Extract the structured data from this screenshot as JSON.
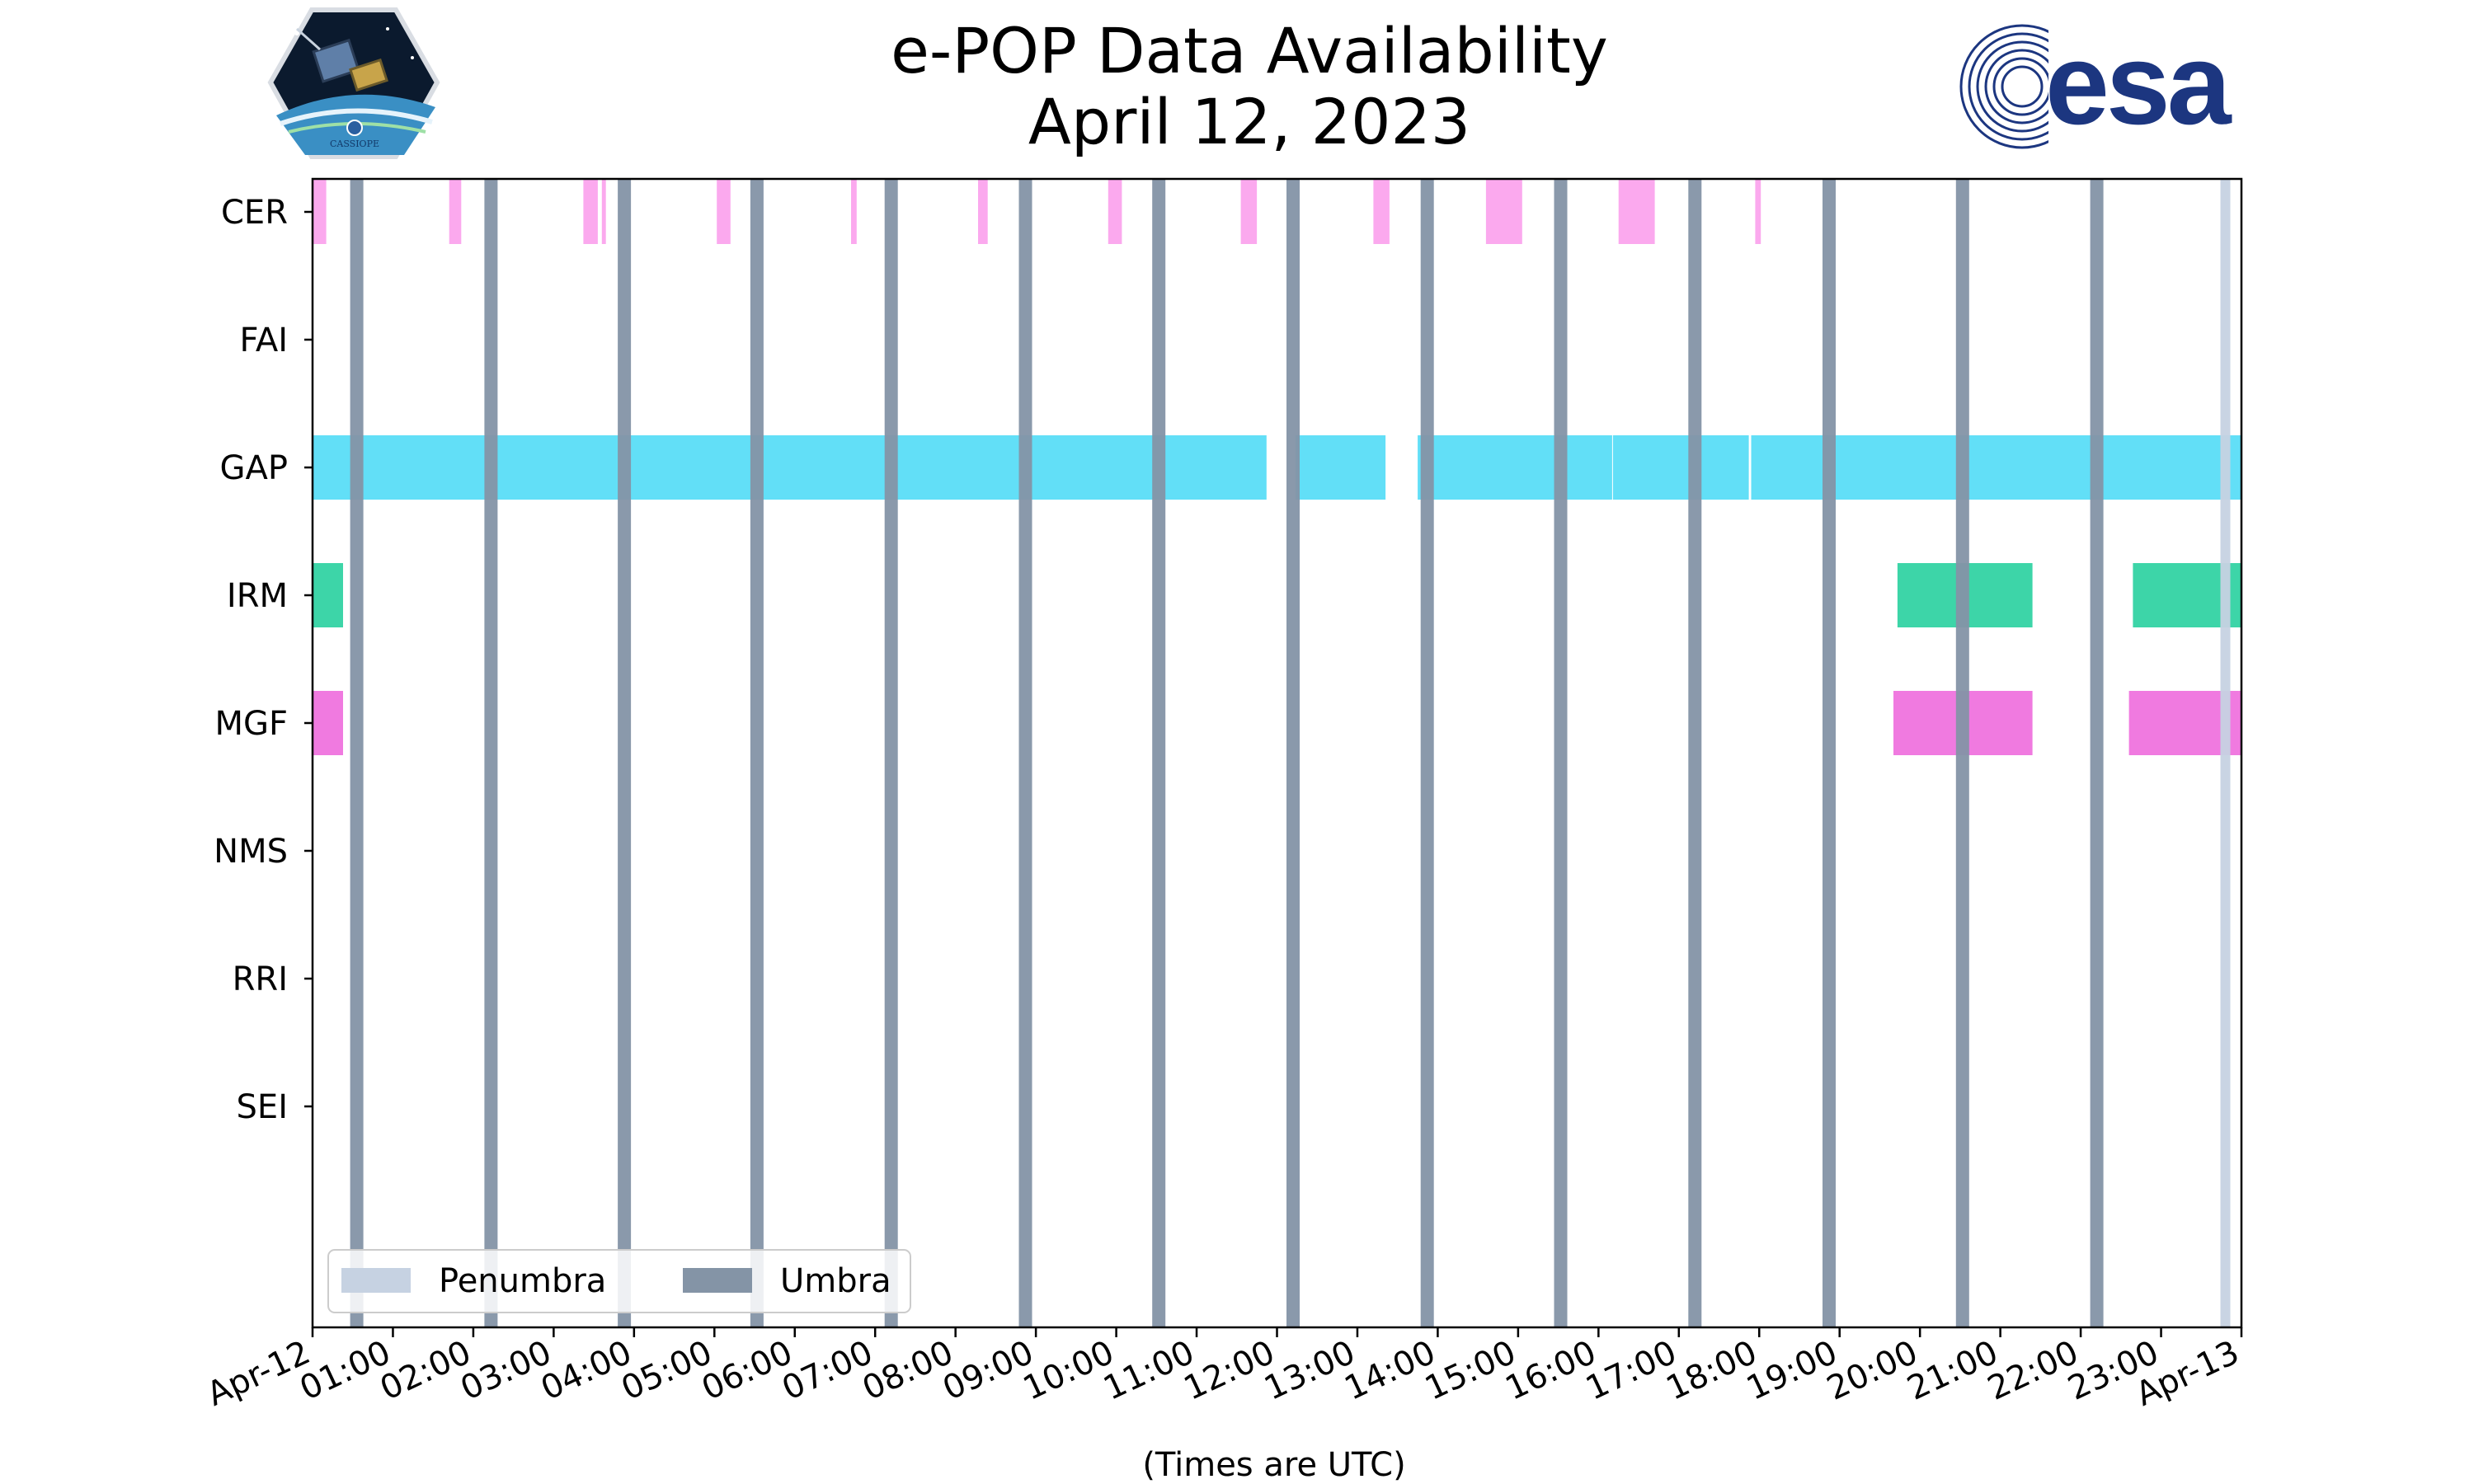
{
  "header": {
    "title_line1": "e-POP Data Availability",
    "title_line2": "April 12, 2023",
    "logo_left_text": "CASSIOPE",
    "logo_right_text": "esa"
  },
  "colors": {
    "CER": "#fba9ee",
    "GAP": "#62dff7",
    "IRM": "#3dd5a8",
    "MGF": "#f07ae0",
    "umbra": "#8494a6",
    "penumbra": "#c6d2e2",
    "esa_blue": "#1c3680"
  },
  "chart_data": {
    "type": "timeline",
    "title": "e-POP Data Availability",
    "subtitle": "April 12, 2023",
    "xlabel": "(Times are UTC)",
    "x_range_hours": [
      0,
      24
    ],
    "x_ticks": [
      "Apr-12",
      "01:00",
      "02:00",
      "03:00",
      "04:00",
      "05:00",
      "06:00",
      "07:00",
      "08:00",
      "09:00",
      "10:00",
      "11:00",
      "12:00",
      "13:00",
      "14:00",
      "15:00",
      "16:00",
      "17:00",
      "18:00",
      "19:00",
      "20:00",
      "21:00",
      "22:00",
      "23:00",
      "Apr-13"
    ],
    "instruments": [
      "CER",
      "FAI",
      "GAP",
      "IRM",
      "MGF",
      "NMS",
      "RRI",
      "SEI"
    ],
    "intervals": {
      "CER": [
        [
          0.0,
          0.17
        ],
        [
          1.7,
          1.85
        ],
        [
          3.37,
          3.55
        ],
        [
          3.6,
          3.65
        ],
        [
          5.03,
          5.2
        ],
        [
          6.7,
          6.77
        ],
        [
          8.28,
          8.4
        ],
        [
          9.9,
          10.07
        ],
        [
          11.55,
          11.75
        ],
        [
          13.2,
          13.4
        ],
        [
          14.6,
          15.05
        ],
        [
          16.25,
          16.7
        ],
        [
          17.95,
          18.02
        ]
      ],
      "FAI": [],
      "GAP": [
        [
          0.0,
          11.87
        ],
        [
          12.23,
          13.35
        ],
        [
          13.75,
          16.17
        ],
        [
          16.18,
          17.87
        ],
        [
          17.9,
          24.0
        ]
      ],
      "IRM": [
        [
          0.0,
          0.38
        ],
        [
          19.72,
          21.4
        ],
        [
          22.65,
          24.0
        ]
      ],
      "MGF": [
        [
          0.0,
          0.38
        ],
        [
          19.67,
          21.4
        ],
        [
          22.6,
          24.0
        ]
      ],
      "NMS": [],
      "RRI": [],
      "SEI": []
    },
    "umbra_hours": [
      0.55,
      2.22,
      3.88,
      5.53,
      7.2,
      8.87,
      10.53,
      12.2,
      13.87,
      15.53,
      17.2,
      18.87,
      20.53,
      22.2
    ],
    "penumbra_hours": [
      23.8
    ],
    "legend": [
      "Penumbra",
      "Umbra"
    ],
    "legend_position": "lower-left"
  }
}
